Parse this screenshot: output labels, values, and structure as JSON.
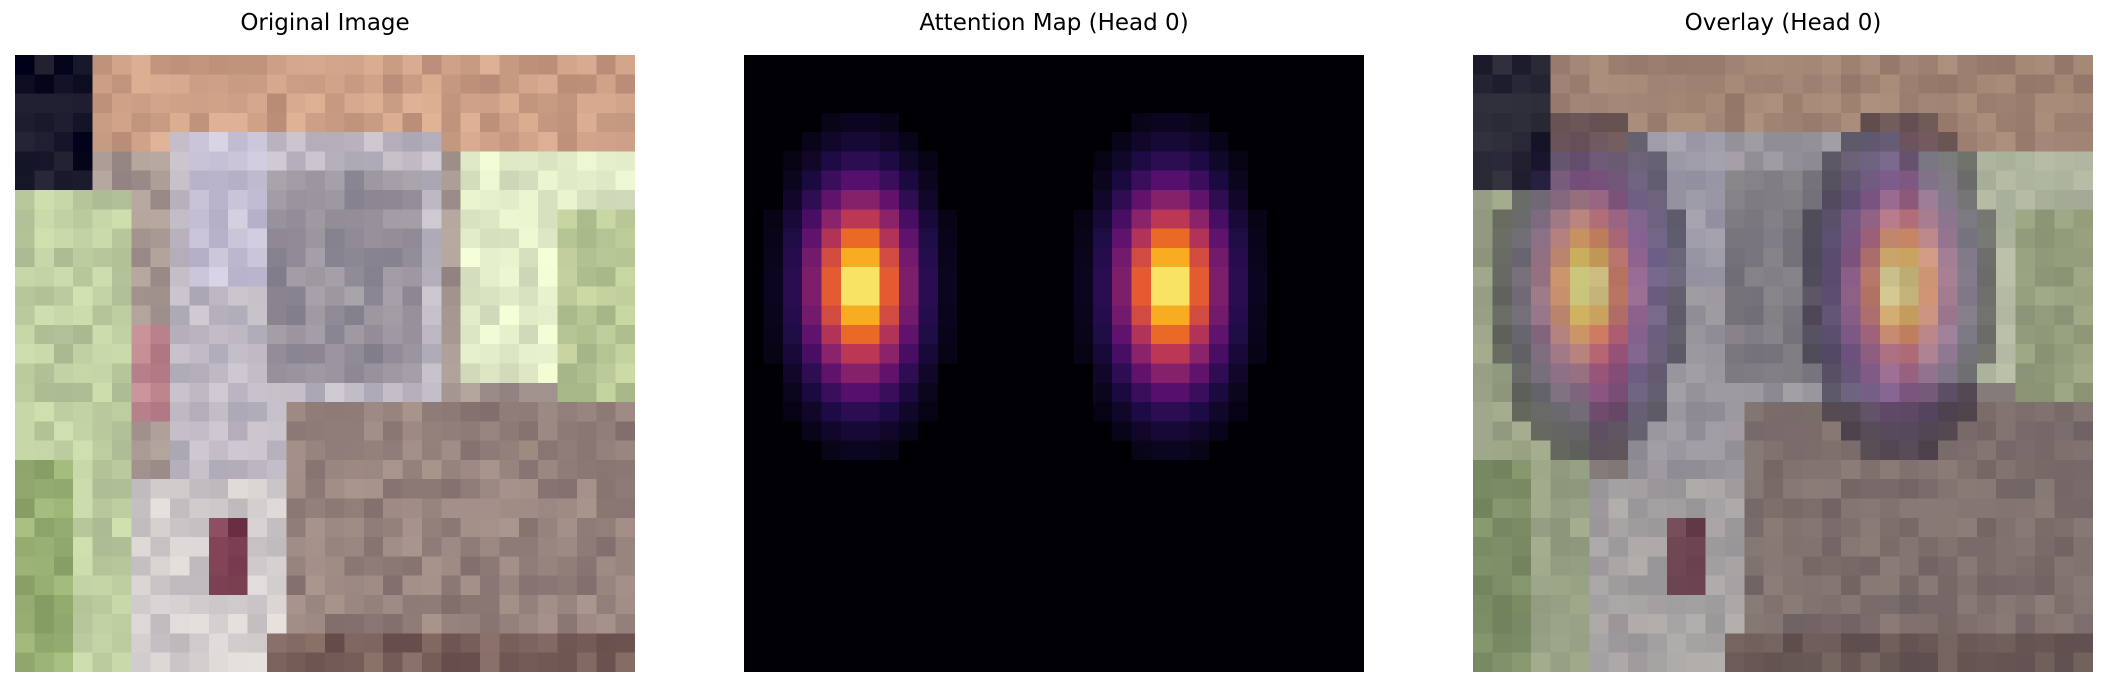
{
  "panels": [
    {
      "title": "Original Image",
      "image": "blurry-cat-photo"
    },
    {
      "title": "Attention Map (Head 0)",
      "image": "attention-heatmap",
      "colormap": "inferno"
    },
    {
      "title": "Overlay (Head 0)",
      "image": "overlay-heatmap-on-photo"
    }
  ],
  "colors": {
    "background": "#ffffff",
    "heatmap_bg": "#000004"
  }
}
